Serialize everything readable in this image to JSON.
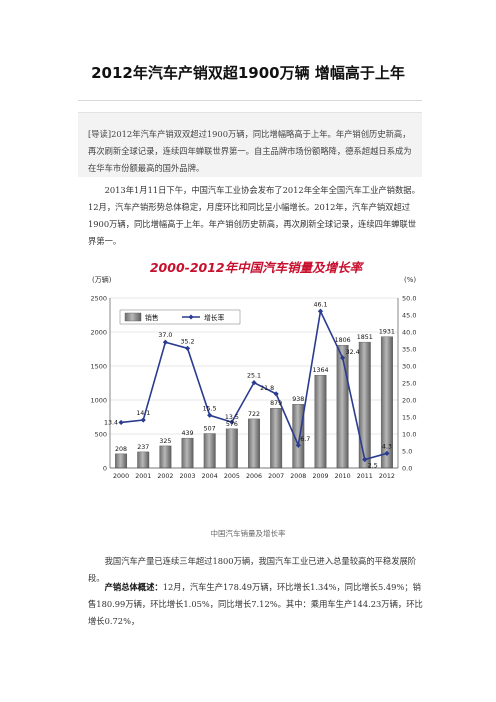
{
  "article": {
    "title": "2012年汽车产销双超1900万辆 增幅高于上年",
    "intro_tag": "[导读]",
    "intro_text": "2012年汽车产销双双超过1900万辆，同比增幅略高于上年。年产销创历史新高，再次刷新全球记录，连续四年蝉联世界第一。自主品牌市场份额略降，德系超越日系成为在华车市份额最高的国外品牌。",
    "para1": "2013年1月11日下午，中国汽车工业协会发布了2012年全年全国汽车工业产销数据。12月，汽车产销形势总体稳定，月度环比和同比呈小幅增长。2012年，汽车产销双超过1900万辆，同比增幅高于上年。年产销创历史新高，再次刷新全球记录，连续四年蝉联世界第一。",
    "caption": "中国汽车销量及增长率",
    "para2": "我国汽车产量已连续三年超过1800万辆，我国汽车工业已进入总量较高的平稳发展阶段。",
    "para3_lead": "产销总体概述：",
    "para3": "12月，汽车生产178.49万辆，环比增长1.34%，同比增长5.49%；销售180.99万辆，环比增长1.05%，同比增长7.12%。其中：乘用车生产144.23万辆，环比增长0.72%，"
  },
  "chart_data": {
    "type": "bar",
    "title": "2000-2012年中国汽车销量及增长率",
    "ylabel_left": "(万辆)",
    "ylabel_right": "(%)",
    "categories": [
      "2000",
      "2001",
      "2002",
      "2003",
      "2004",
      "2005",
      "2006",
      "2007",
      "2008",
      "2009",
      "2010",
      "2011",
      "2012"
    ],
    "ylim_left": [
      0,
      2500
    ],
    "yticks_left": [
      0,
      500,
      1000,
      1500,
      2000,
      2500
    ],
    "ylim_right": [
      0,
      50
    ],
    "yticks_right": [
      "0.0",
      "5.0",
      "10.0",
      "15.0",
      "20.0",
      "25.0",
      "30.0",
      "35.0",
      "40.0",
      "45.0",
      "50.0"
    ],
    "series": [
      {
        "name": "销售",
        "type": "bar",
        "axis": "left",
        "values": [
          208,
          237,
          325,
          439,
          507,
          576,
          722,
          879,
          938,
          1364,
          1806,
          1851,
          1931
        ],
        "labels": [
          "208",
          "237",
          "325",
          "439",
          "507",
          "576",
          "722",
          "879",
          "938",
          "1364",
          "1806",
          "1851",
          "1931"
        ]
      },
      {
        "name": "增长率",
        "type": "line",
        "axis": "right",
        "values": [
          13.4,
          14.1,
          37.0,
          35.2,
          15.5,
          13.5,
          25.1,
          21.8,
          6.7,
          46.1,
          32.4,
          2.5,
          4.3
        ],
        "labels": [
          "13.4",
          "14.1",
          "37.0",
          "35.2",
          "15.5",
          "13.5",
          "25.1",
          "21.8",
          "6.7",
          "46.1",
          "32.4",
          "2.5",
          "4.3"
        ]
      }
    ],
    "legend_position": "top-left",
    "colors": {
      "bar": "#8a8a8a",
      "line": "#2b3b8f",
      "title": "#c8102e"
    }
  }
}
